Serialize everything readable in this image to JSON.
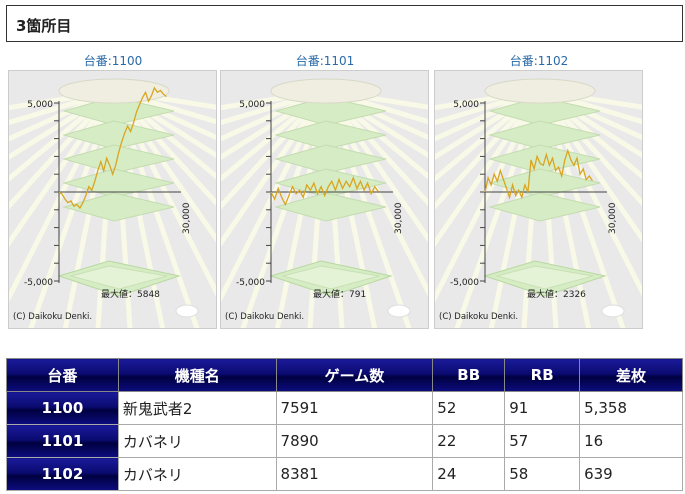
{
  "section": {
    "title": "3箇所目"
  },
  "graphs": [
    {
      "label": "台番:1100",
      "y_top_label": "5,000",
      "y_bottom_label": "-5,000",
      "x_label": "30,000",
      "max_text": "最大値：5848",
      "copyright": "(C) Daikoku Denki.",
      "line_color": "#d9a520",
      "series": [
        0,
        -120,
        -400,
        -600,
        -500,
        -800,
        -700,
        -900,
        -600,
        -200,
        300,
        100,
        600,
        1200,
        1700,
        1200,
        1900,
        1500,
        1000,
        1500,
        2200,
        2800,
        3300,
        3700,
        3400,
        3900,
        4500,
        4900,
        5300,
        5600,
        5100,
        5400,
        5848,
        5600,
        5700,
        5500,
        5358
      ]
    },
    {
      "label": "台番:1101",
      "y_top_label": "5,000",
      "y_bottom_label": "-5,000",
      "x_label": "30,000",
      "max_text": "最大値：791",
      "copyright": "(C) Daikoku Denki.",
      "line_color": "#d9a520",
      "series": [
        0,
        -400,
        200,
        -300,
        -700,
        -200,
        300,
        -100,
        100,
        -300,
        400,
        100,
        500,
        -100,
        300,
        -200,
        300,
        600,
        100,
        700,
        200,
        600,
        300,
        791,
        200,
        600,
        100,
        500,
        -100,
        300,
        16
      ]
    },
    {
      "label": "台番:1102",
      "y_top_label": "5,000",
      "y_bottom_label": "-5,000",
      "x_label": "30,000",
      "max_text": "最大値：2326",
      "copyright": "(C) Daikoku Denki.",
      "line_color": "#d9a520",
      "series": [
        0,
        800,
        400,
        1000,
        600,
        1200,
        700,
        200,
        -300,
        400,
        -200,
        100,
        -300,
        400,
        0,
        1800,
        1300,
        2000,
        1600,
        1500,
        2100,
        1500,
        1900,
        1200,
        1400,
        900,
        1800,
        2326,
        1800,
        1500,
        1900,
        1000,
        1300,
        700,
        900,
        639
      ]
    }
  ],
  "table": {
    "headers": [
      "台番",
      "機種名",
      "ゲーム数",
      "BB",
      "RB",
      "差枚"
    ],
    "rows": [
      [
        "1100",
        "新鬼武者2",
        "7591",
        "52",
        "91",
        "5,358"
      ],
      [
        "1101",
        "カバネリ",
        "7890",
        "22",
        "57",
        "16"
      ],
      [
        "1102",
        "カバネリ",
        "8381",
        "24",
        "58",
        "639"
      ]
    ]
  }
}
